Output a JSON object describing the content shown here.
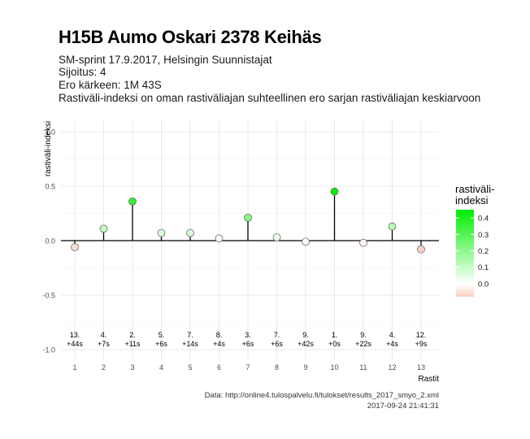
{
  "header": {
    "title": "H15B Aumo Oskari 2378 Keihäs",
    "subtitle_lines": [
      "SM-sprint 17.9.2017, Helsingin Suunnistajat",
      "Sijoitus: 4",
      "Ero kärkeen: 1M 43S",
      "Rastiväli-indeksi on oman rastiväliajan suhteellinen ero sarjan rastiväliajan keskiarvoon"
    ]
  },
  "caption": {
    "source": "Data: http://online4.tulospalvelu.fi/tulokset/results_2017_smyo_2.xml",
    "timestamp": "2017-09-24 21:41:31"
  },
  "chart_data": {
    "type": "scatter",
    "style": "lollipop",
    "xlabel": "Rastit",
    "ylabel": "rastiväli-indeksi",
    "x": [
      1,
      2,
      3,
      4,
      5,
      6,
      7,
      8,
      9,
      10,
      11,
      12,
      13
    ],
    "values": [
      -0.06,
      0.11,
      0.36,
      0.07,
      0.07,
      0.02,
      0.21,
      0.03,
      -0.01,
      0.45,
      -0.02,
      0.13,
      -0.08
    ],
    "point_labels": [
      [
        "13.",
        "+44s"
      ],
      [
        "4.",
        "+7s"
      ],
      [
        "2.",
        "+11s"
      ],
      [
        "5.",
        "+6s"
      ],
      [
        "7.",
        "+14s"
      ],
      [
        "8.",
        "+4s"
      ],
      [
        "3.",
        "+6s"
      ],
      [
        "7.",
        "+6s"
      ],
      [
        "9.",
        "+42s"
      ],
      [
        "1.",
        "+0s"
      ],
      [
        "9.",
        "+22s"
      ],
      [
        "4.",
        "+4s"
      ],
      [
        "12.",
        "+9s"
      ]
    ],
    "ylim": [
      -1.0,
      1.0
    ],
    "yticks": [
      "1.0",
      "0.5",
      "0.0",
      "-0.5",
      "-1.0"
    ],
    "xticks": [
      "1",
      "2",
      "3",
      "4",
      "5",
      "6",
      "7",
      "8",
      "9",
      "10",
      "11",
      "12",
      "13"
    ],
    "grid": true,
    "legend": {
      "title_lines": [
        "rastiväli-",
        "indeksi"
      ],
      "ticks": [
        "0.4",
        "0.3",
        "0.2",
        "0.1",
        "0.0"
      ],
      "range": [
        -0.08,
        0.45
      ],
      "placement": "right"
    },
    "colors": {
      "negative": "#f8d0c0",
      "zero": "#ffffff",
      "positive": "#00ee00",
      "grid": "#e3e3e3",
      "axis": "#000000"
    }
  }
}
